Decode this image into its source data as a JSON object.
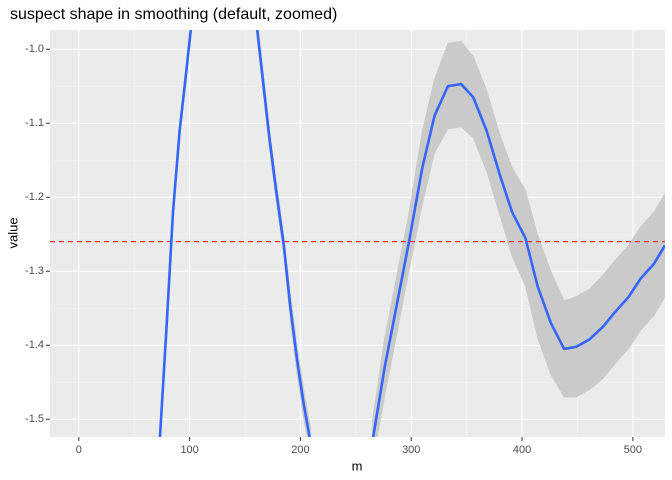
{
  "chart_data": {
    "type": "smooth",
    "title": "suspect shape in smoothing (default, zoomed)",
    "xlabel": "m",
    "ylabel": "value",
    "xlim": [
      -26,
      529
    ],
    "ylim": [
      -1.524,
      -0.974
    ],
    "xticks": [
      0,
      100,
      200,
      300,
      400,
      500
    ],
    "yticks": [
      {
        "value": -1,
        "label": "-1.0"
      },
      -1.1,
      -1.2,
      -1.3,
      -1.4,
      -1.5
    ],
    "grid": true,
    "line_color": "#3366ff",
    "ribbon_color": "#cacaca",
    "hline": {
      "value": -1.26,
      "color": "#e8332e"
    },
    "x": [
      73,
      79,
      85,
      91,
      97,
      102,
      130,
      160,
      166,
      172,
      178,
      185,
      191,
      197,
      203,
      209,
      240,
      265,
      276,
      287,
      298,
      310,
      321,
      333,
      345,
      356,
      368,
      380,
      391,
      403,
      414,
      426,
      438,
      449,
      461,
      473,
      484,
      496,
      507,
      519,
      529
    ],
    "y": [
      -1.53,
      -1.38,
      -1.22,
      -1.11,
      -1.03,
      -0.96,
      null,
      -0.96,
      -1.04,
      -1.12,
      -1.19,
      -1.265,
      -1.35,
      -1.42,
      -1.48,
      -1.53,
      null,
      -1.53,
      -1.43,
      -1.345,
      -1.26,
      -1.16,
      -1.09,
      -1.05,
      -1.047,
      -1.065,
      -1.11,
      -1.17,
      -1.22,
      -1.255,
      -1.32,
      -1.37,
      -1.405,
      -1.402,
      -1.392,
      -1.375,
      -1.355,
      -1.335,
      -1.31,
      -1.29,
      -1.265
    ],
    "lower": [
      -1.54,
      -1.39,
      -1.23,
      -1.12,
      -1.04,
      -0.97,
      null,
      -0.975,
      -1.055,
      -1.135,
      -1.205,
      -1.28,
      -1.37,
      -1.44,
      -1.5,
      -1.55,
      null,
      -1.56,
      -1.47,
      -1.385,
      -1.3,
      -1.21,
      -1.14,
      -1.108,
      -1.105,
      -1.12,
      -1.165,
      -1.225,
      -1.28,
      -1.32,
      -1.39,
      -1.44,
      -1.47,
      -1.47,
      -1.46,
      -1.445,
      -1.425,
      -1.405,
      -1.38,
      -1.36,
      -1.335
    ],
    "upper": [
      -1.52,
      -1.37,
      -1.21,
      -1.1,
      -1.02,
      -0.95,
      null,
      -0.945,
      -1.025,
      -1.105,
      -1.175,
      -1.25,
      -1.33,
      -1.4,
      -1.46,
      -1.51,
      null,
      -1.5,
      -1.39,
      -1.305,
      -1.22,
      -1.11,
      -1.04,
      -0.992,
      -0.989,
      -1.01,
      -1.055,
      -1.115,
      -1.16,
      -1.19,
      -1.25,
      -1.3,
      -1.34,
      -1.334,
      -1.324,
      -1.305,
      -1.285,
      -1.265,
      -1.24,
      -1.22,
      -1.195
    ]
  }
}
